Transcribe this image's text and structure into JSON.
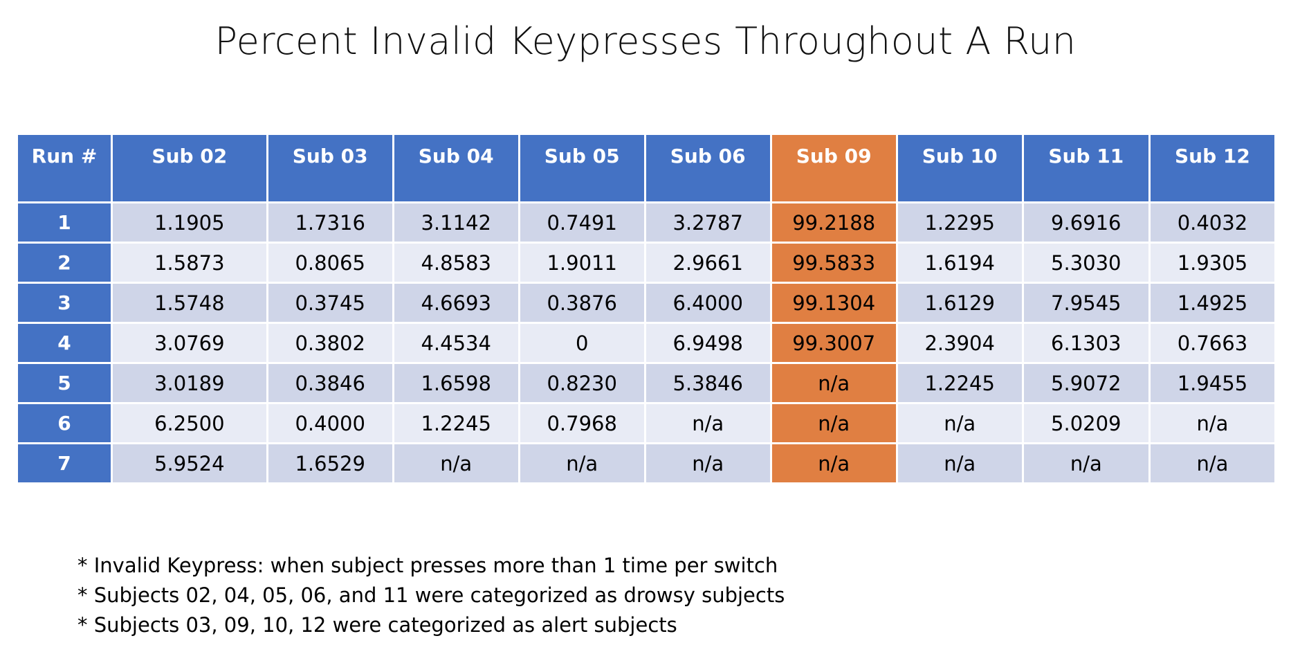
{
  "title": "Percent Invalid Keypresses Throughout A Run",
  "table": {
    "headers": [
      "Run #",
      "Sub 02",
      "Sub 03",
      "Sub 04",
      "Sub 05",
      "Sub 06",
      "Sub 09",
      "Sub 10",
      "Sub 11",
      "Sub 12"
    ],
    "highlight_column": "Sub 09",
    "highlight_color": "#e07f42",
    "header_color": "#4472c4",
    "rows": [
      [
        "1",
        "1.1905",
        "1.7316",
        "3.1142",
        "0.7491",
        "3.2787",
        "99.2188",
        "1.2295",
        "9.6916",
        "0.4032"
      ],
      [
        "2",
        "1.5873",
        "0.8065",
        "4.8583",
        "1.9011",
        "2.9661",
        "99.5833",
        "1.6194",
        "5.3030",
        "1.9305"
      ],
      [
        "3",
        "1.5748",
        "0.3745",
        "4.6693",
        "0.3876",
        "6.4000",
        "99.1304",
        "1.6129",
        "7.9545",
        "1.4925"
      ],
      [
        "4",
        "3.0769",
        "0.3802",
        "4.4534",
        "0",
        "6.9498",
        "99.3007",
        "2.3904",
        "6.1303",
        "0.7663"
      ],
      [
        "5",
        "3.0189",
        "0.3846",
        "1.6598",
        "0.8230",
        "5.3846",
        "n/a",
        "1.2245",
        "5.9072",
        "1.9455"
      ],
      [
        "6",
        "6.2500",
        "0.4000",
        "1.2245",
        "0.7968",
        "n/a",
        "n/a",
        "n/a",
        "5.0209",
        "n/a"
      ],
      [
        "7",
        "5.9524",
        "1.6529",
        "n/a",
        "n/a",
        "n/a",
        "n/a",
        "n/a",
        "n/a",
        "n/a"
      ]
    ]
  },
  "notes": [
    "* Invalid Keypress: when subject presses more than 1 time per switch",
    "* Subjects 02, 04, 05, 06, and 11 were categorized as drowsy subjects",
    "* Subjects  03, 09, 10, 12 were categorized as alert subjects"
  ]
}
